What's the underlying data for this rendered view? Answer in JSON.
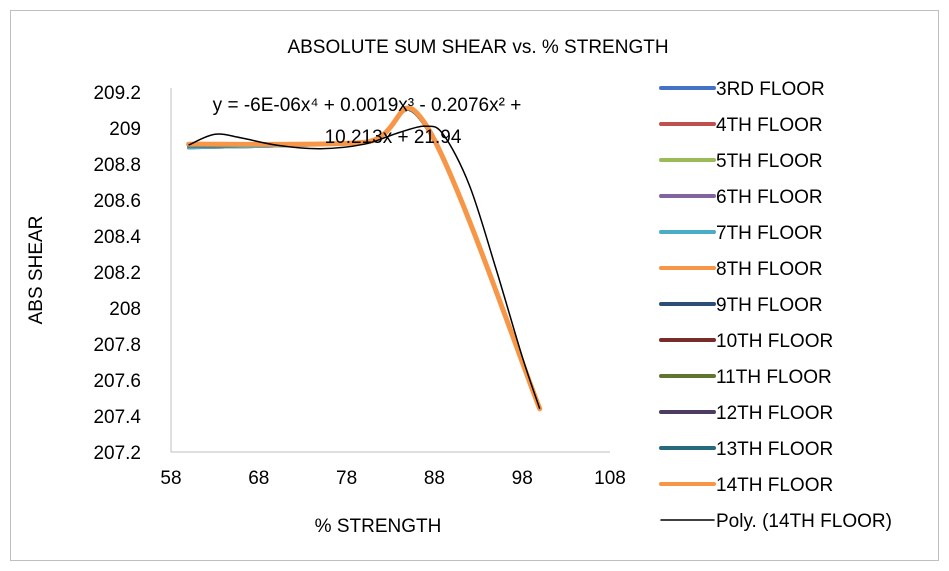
{
  "chart_data": {
    "type": "line",
    "title": "ABSOLUTE SUM SHEAR vs. % STRENGTH",
    "xlabel": "% STRENGTH",
    "ylabel": "ABS SHEAR",
    "xlim": [
      58,
      108
    ],
    "ylim": [
      207.2,
      209.2
    ],
    "x_ticks": [
      "58",
      "68",
      "78",
      "88",
      "98",
      "108"
    ],
    "y_ticks": [
      "209.2",
      "209",
      "208.8",
      "208.6",
      "208.4",
      "208.2",
      "208",
      "207.8",
      "207.6",
      "207.4",
      "207.2"
    ],
    "x_tick_values": [
      58,
      68,
      78,
      88,
      98,
      108
    ],
    "y_tick_values": [
      209.2,
      209,
      208.8,
      208.6,
      208.4,
      208.2,
      208,
      207.8,
      207.6,
      207.4,
      207.2
    ],
    "grid": false,
    "legend_position": "right",
    "x": [
      60,
      80,
      87,
      100
    ],
    "series": [
      {
        "name": "3RD FLOOR",
        "color": "#4472c4",
        "values": [
          208.89,
          208.92,
          209.01,
          207.44
        ]
      },
      {
        "name": "4TH FLOOR",
        "color": "#c0504d",
        "values": [
          208.89,
          208.92,
          209.01,
          207.44
        ]
      },
      {
        "name": "5TH FLOOR",
        "color": "#9bbb59",
        "values": [
          208.89,
          208.92,
          209.01,
          207.44
        ]
      },
      {
        "name": "6TH FLOOR",
        "color": "#8064a2",
        "values": [
          208.89,
          208.92,
          209.01,
          207.44
        ]
      },
      {
        "name": "7TH FLOOR",
        "color": "#4bacc6",
        "values": [
          208.89,
          208.92,
          209.01,
          207.44
        ]
      },
      {
        "name": "8TH FLOOR",
        "color": "#f79646",
        "values": [
          208.9,
          208.92,
          209.01,
          207.44
        ]
      },
      {
        "name": "9TH FLOOR",
        "color": "#2c4d75",
        "values": [
          208.9,
          208.92,
          209.01,
          207.44
        ]
      },
      {
        "name": "10TH FLOOR",
        "color": "#772c2a",
        "values": [
          208.9,
          208.92,
          209.01,
          207.44
        ]
      },
      {
        "name": "11TH FLOOR",
        "color": "#5f7530",
        "values": [
          208.9,
          208.92,
          209.01,
          207.44
        ]
      },
      {
        "name": "12TH FLOOR",
        "color": "#4d3b62",
        "values": [
          208.9,
          208.92,
          209.01,
          207.44
        ]
      },
      {
        "name": "13TH FLOOR",
        "color": "#276a7c",
        "values": [
          208.9,
          208.92,
          209.01,
          207.44
        ]
      },
      {
        "name": "14TH FLOOR",
        "color": "#f79646",
        "values": [
          208.91,
          208.92,
          209.02,
          207.44
        ]
      }
    ],
    "trendline": {
      "name": "Poly. (14TH FLOOR)",
      "color": "#000000",
      "type": "polynomial",
      "order": 4,
      "equation_line1": "y = -6E-06x⁴ + 0.0019x³ - 0.2076x² +",
      "equation_line2": "10.213x + 21.94",
      "points": [
        [
          60,
          208.905
        ],
        [
          63,
          208.965
        ],
        [
          66,
          208.945
        ],
        [
          70,
          208.905
        ],
        [
          75,
          208.885
        ],
        [
          80,
          208.91
        ],
        [
          84,
          208.975
        ],
        [
          87,
          209.01
        ],
        [
          89,
          208.965
        ],
        [
          92,
          208.68
        ],
        [
          95,
          208.22
        ],
        [
          98,
          207.73
        ],
        [
          100,
          207.44
        ]
      ]
    }
  }
}
